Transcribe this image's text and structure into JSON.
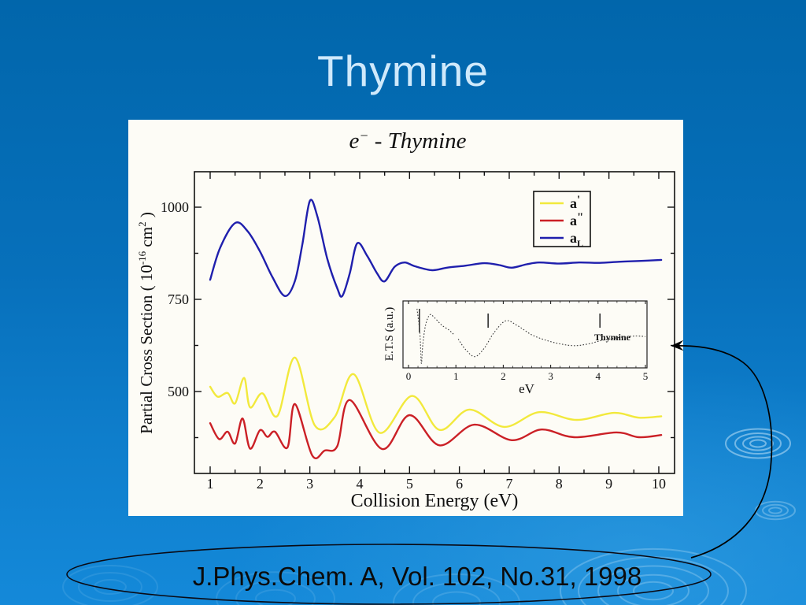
{
  "slide": {
    "title": "Thymine",
    "citation": "J.Phys.Chem. A, Vol. 102, No.31, 1998",
    "colors": {
      "bg_top": "#0166ab",
      "bg_bottom": "#1489d9",
      "title_text": "#cfe9fb",
      "panel_bg": "#fdfcf6",
      "chart_title_text": "#9b8b83",
      "series_yellow": "#f2e93c",
      "series_red": "#cb2026",
      "series_blue": "#1f1fad"
    }
  },
  "chart_data": [
    {
      "type": "line",
      "title_parts": {
        "base": "e",
        "sup": "−",
        "rest": "  - Thymine"
      },
      "xlabel": "Collision Energy (eV)",
      "ylabel_parts": [
        {
          "t": "Partial Cross Section ( 10"
        },
        {
          "t": "-16",
          "sup": true
        },
        {
          "t": " cm",
          "sup": false
        },
        {
          "t": "2",
          "sup": true
        },
        {
          "t": " )",
          "sup": false
        }
      ],
      "xlim": [
        0.68,
        10.32
      ],
      "ylim": [
        272,
        1096
      ],
      "xticks": [
        1,
        2,
        3,
        4,
        5,
        6,
        7,
        8,
        9,
        10
      ],
      "xminors": [
        1.5,
        2.5,
        3.5,
        4.5,
        5.5,
        6.5,
        7.5,
        8.5,
        9.5
      ],
      "yticks": [
        500,
        750,
        1000
      ],
      "yminors": [
        375,
        625,
        875
      ],
      "grid": false,
      "legend_position": "top-right",
      "series": [
        {
          "name": "a'",
          "label_base": "a",
          "label_mark": "'",
          "mark_pos": "sup",
          "color": "#f2e93c",
          "points": [
            [
              1.0,
              513
            ],
            [
              1.15,
              486
            ],
            [
              1.35,
              496
            ],
            [
              1.5,
              468
            ],
            [
              1.68,
              537
            ],
            [
              1.8,
              457
            ],
            [
              2.05,
              495
            ],
            [
              2.35,
              434
            ],
            [
              2.7,
              592
            ],
            [
              3.1,
              408
            ],
            [
              3.5,
              431
            ],
            [
              3.88,
              547
            ],
            [
              4.4,
              388
            ],
            [
              5.05,
              488
            ],
            [
              5.6,
              396
            ],
            [
              6.2,
              451
            ],
            [
              6.9,
              404
            ],
            [
              7.6,
              444
            ],
            [
              8.35,
              423
            ],
            [
              9.1,
              442
            ],
            [
              9.6,
              429
            ],
            [
              10.05,
              433
            ]
          ]
        },
        {
          "name": "a\"",
          "label_base": "a",
          "label_mark": "\"",
          "mark_pos": "sup",
          "color": "#cb2026",
          "points": [
            [
              1.0,
              414
            ],
            [
              1.18,
              371
            ],
            [
              1.35,
              391
            ],
            [
              1.5,
              359
            ],
            [
              1.65,
              427
            ],
            [
              1.8,
              345
            ],
            [
              2.0,
              395
            ],
            [
              2.15,
              377
            ],
            [
              2.3,
              391
            ],
            [
              2.55,
              348
            ],
            [
              2.7,
              466
            ],
            [
              3.05,
              326
            ],
            [
              3.3,
              340
            ],
            [
              3.55,
              352
            ],
            [
              3.8,
              477
            ],
            [
              4.45,
              344
            ],
            [
              5.0,
              436
            ],
            [
              5.6,
              354
            ],
            [
              6.3,
              410
            ],
            [
              7.05,
              368
            ],
            [
              7.65,
              397
            ],
            [
              8.3,
              376
            ],
            [
              9.15,
              389
            ],
            [
              9.6,
              376
            ],
            [
              10.05,
              382
            ]
          ]
        },
        {
          "name": "aL",
          "label_base": "a",
          "label_mark": "L",
          "mark_pos": "sub",
          "color": "#1f1fad",
          "points": [
            [
              1.0,
              803
            ],
            [
              1.2,
              890
            ],
            [
              1.5,
              957
            ],
            [
              1.75,
              935
            ],
            [
              2.0,
              880
            ],
            [
              2.25,
              810
            ],
            [
              2.5,
              759
            ],
            [
              2.7,
              800
            ],
            [
              2.85,
              900
            ],
            [
              3.0,
              1017
            ],
            [
              3.15,
              975
            ],
            [
              3.35,
              860
            ],
            [
              3.55,
              780
            ],
            [
              3.65,
              759
            ],
            [
              3.8,
              820
            ],
            [
              3.95,
              902
            ],
            [
              4.15,
              868
            ],
            [
              4.35,
              820
            ],
            [
              4.5,
              799
            ],
            [
              4.7,
              838
            ],
            [
              4.9,
              850
            ],
            [
              5.1,
              840
            ],
            [
              5.45,
              829
            ],
            [
              5.75,
              836
            ],
            [
              6.1,
              841
            ],
            [
              6.5,
              848
            ],
            [
              6.8,
              843
            ],
            [
              7.05,
              836
            ],
            [
              7.35,
              845
            ],
            [
              7.6,
              850
            ],
            [
              8.0,
              847
            ],
            [
              8.4,
              850
            ],
            [
              8.8,
              849
            ],
            [
              9.2,
              852
            ],
            [
              9.6,
              854
            ],
            [
              10.05,
              857
            ]
          ]
        }
      ]
    },
    {
      "type": "line",
      "inset": true,
      "xlabel": "eV",
      "ylabel": "E.T.S (a.u.)",
      "annotation": "Thymine",
      "xlim": [
        0,
        5.05
      ],
      "xticks": [
        0,
        1,
        2,
        3,
        4,
        5
      ],
      "xminor_step": 0.2,
      "resonance_markers_eV": [
        0.23,
        1.68,
        4.04
      ],
      "series": [
        {
          "name": "ETS",
          "color": "#3a3a3a",
          "segments": [
            [
              [
                0.18,
                0.95
              ],
              [
                0.24,
                0.55
              ],
              [
                0.27,
                0.05
              ],
              [
                0.3,
                0.35
              ],
              [
                0.36,
                0.68
              ],
              [
                0.45,
                0.85
              ],
              [
                0.55,
                0.8
              ],
              [
                0.7,
                0.68
              ],
              [
                0.85,
                0.6
              ],
              [
                0.95,
                0.53
              ]
            ],
            [
              [
                1.05,
                0.45
              ],
              [
                1.2,
                0.28
              ],
              [
                1.4,
                0.16
              ],
              [
                1.6,
                0.3
              ],
              [
                1.8,
                0.55
              ],
              [
                2.05,
                0.75
              ],
              [
                2.3,
                0.67
              ],
              [
                2.6,
                0.52
              ],
              [
                2.9,
                0.43
              ],
              [
                3.2,
                0.37
              ],
              [
                3.5,
                0.34
              ],
              [
                3.8,
                0.37
              ],
              [
                4.1,
                0.43
              ],
              [
                4.5,
                0.48
              ],
              [
                4.8,
                0.5
              ],
              [
                5.0,
                0.49
              ]
            ]
          ]
        }
      ]
    }
  ]
}
